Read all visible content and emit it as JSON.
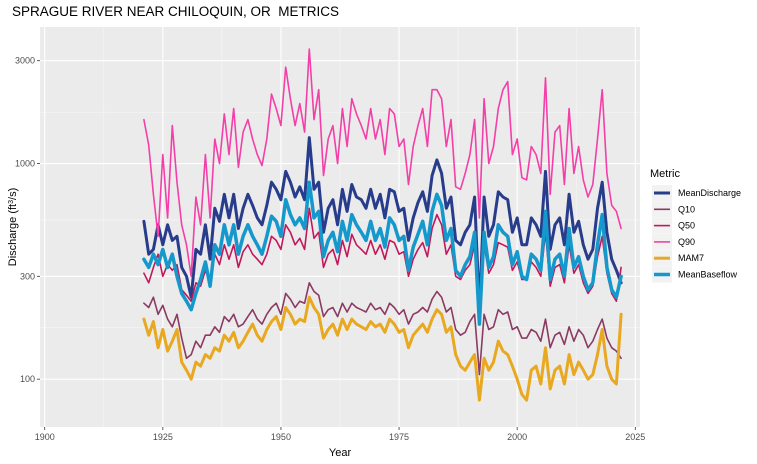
{
  "chart_data": {
    "type": "line",
    "title": "SPRAGUE RIVER NEAR CHILOQUIN, OR  METRICS",
    "xlabel": "Year",
    "ylabel": "Discharge (ft3/s)",
    "ylabel_parts": {
      "prefix": "Discharge (ft",
      "superscript": "3",
      "suffix": "/s)"
    },
    "y_scale": "log",
    "xlim": [
      1899,
      2026
    ],
    "ylim": [
      60,
      4300
    ],
    "x_ticks": [
      1900,
      1925,
      1950,
      1975,
      2000,
      2025
    ],
    "x_tick_labels": [
      "1900",
      "1925",
      "1950",
      "1975",
      "2000",
      "2025"
    ],
    "y_ticks": [
      100,
      300,
      1000,
      3000
    ],
    "y_tick_labels": [
      "100",
      "300",
      "1000",
      "3000"
    ],
    "grid": true,
    "legend_title": "Metric",
    "legend_position": "right",
    "x": [
      1921,
      1922,
      1923,
      1924,
      1925,
      1926,
      1927,
      1928,
      1929,
      1930,
      1931,
      1932,
      1933,
      1934,
      1935,
      1936,
      1937,
      1938,
      1939,
      1940,
      1941,
      1942,
      1943,
      1944,
      1945,
      1946,
      1947,
      1948,
      1949,
      1950,
      1951,
      1952,
      1953,
      1954,
      1955,
      1956,
      1957,
      1958,
      1959,
      1960,
      1961,
      1962,
      1963,
      1964,
      1965,
      1966,
      1967,
      1968,
      1969,
      1970,
      1971,
      1972,
      1973,
      1974,
      1975,
      1976,
      1977,
      1978,
      1979,
      1980,
      1981,
      1982,
      1983,
      1984,
      1985,
      1986,
      1987,
      1988,
      1989,
      1990,
      1991,
      1992,
      1993,
      1994,
      1995,
      1996,
      1997,
      1998,
      1999,
      2000,
      2001,
      2002,
      2003,
      2004,
      2005,
      2006,
      2007,
      2008,
      2009,
      2010,
      2011,
      2012,
      2013,
      2014,
      2015,
      2016,
      2017,
      2018,
      2019,
      2020,
      2021,
      2022
    ],
    "series": [
      {
        "name": "MeanDischarge",
        "color": "#283c8c",
        "width": 3,
        "values": [
          540,
          380,
          400,
          520,
          420,
          520,
          440,
          460,
          330,
          300,
          240,
          400,
          380,
          520,
          360,
          620,
          540,
          720,
          560,
          720,
          500,
          620,
          720,
          640,
          560,
          520,
          640,
          820,
          760,
          680,
          920,
          820,
          700,
          780,
          680,
          1320,
          760,
          820,
          480,
          620,
          680,
          520,
          760,
          600,
          800,
          700,
          680,
          620,
          760,
          620,
          720,
          560,
          760,
          740,
          600,
          620,
          440,
          560,
          660,
          740,
          600,
          880,
          1040,
          900,
          620,
          700,
          440,
          420,
          480,
          520,
          700,
          210,
          700,
          460,
          520,
          740,
          700,
          680,
          480,
          560,
          420,
          420,
          560,
          520,
          460,
          920,
          400,
          520,
          560,
          420,
          720,
          480,
          540,
          420,
          360,
          400,
          620,
          820,
          480,
          360,
          320,
          280
        ]
      },
      {
        "name": "Q10",
        "color": "#8b3a62",
        "width": 1.6,
        "values": [
          225,
          215,
          240,
          200,
          220,
          190,
          175,
          200,
          155,
          125,
          130,
          150,
          140,
          160,
          160,
          175,
          165,
          195,
          185,
          200,
          175,
          180,
          195,
          210,
          190,
          180,
          200,
          215,
          225,
          200,
          250,
          235,
          215,
          230,
          225,
          280,
          255,
          245,
          195,
          210,
          215,
          195,
          225,
          205,
          225,
          215,
          210,
          205,
          225,
          210,
          215,
          200,
          225,
          215,
          200,
          210,
          180,
          200,
          205,
          215,
          205,
          235,
          255,
          240,
          205,
          215,
          170,
          160,
          165,
          185,
          200,
          105,
          200,
          170,
          175,
          210,
          200,
          205,
          170,
          175,
          155,
          155,
          170,
          165,
          150,
          190,
          140,
          160,
          165,
          145,
          175,
          150,
          170,
          160,
          140,
          150,
          170,
          190,
          155,
          140,
          135,
          125
        ]
      },
      {
        "name": "Q50",
        "color": "#c2185b",
        "width": 1.6,
        "values": [
          310,
          280,
          330,
          380,
          300,
          340,
          320,
          340,
          260,
          245,
          230,
          280,
          270,
          320,
          280,
          380,
          340,
          420,
          360,
          420,
          330,
          390,
          420,
          380,
          360,
          340,
          380,
          460,
          440,
          400,
          520,
          480,
          420,
          450,
          400,
          620,
          450,
          480,
          330,
          380,
          400,
          340,
          440,
          370,
          470,
          420,
          400,
          380,
          440,
          380,
          420,
          360,
          440,
          430,
          380,
          390,
          300,
          360,
          400,
          430,
          370,
          500,
          580,
          520,
          380,
          420,
          300,
          290,
          320,
          340,
          420,
          180,
          420,
          310,
          340,
          430,
          420,
          410,
          320,
          350,
          290,
          290,
          350,
          330,
          300,
          480,
          270,
          330,
          340,
          280,
          420,
          310,
          340,
          280,
          250,
          270,
          370,
          460,
          310,
          250,
          230,
          330
        ]
      },
      {
        "name": "Q90",
        "color": "#f43fa8",
        "width": 1.6,
        "values": [
          1600,
          1220,
          720,
          460,
          1100,
          560,
          1500,
          820,
          520,
          420,
          300,
          700,
          520,
          1100,
          560,
          1300,
          1000,
          1700,
          1100,
          1800,
          960,
          1400,
          1600,
          1300,
          1100,
          980,
          1300,
          2100,
          1800,
          1500,
          2800,
          2000,
          1500,
          1900,
          1400,
          3400,
          1600,
          2200,
          880,
          1300,
          1500,
          1000,
          1800,
          1200,
          2000,
          1700,
          1500,
          1300,
          1800,
          1300,
          1600,
          1100,
          1800,
          1700,
          1200,
          1300,
          800,
          1200,
          1500,
          1800,
          1200,
          2200,
          2200,
          2000,
          1200,
          1600,
          780,
          760,
          900,
          1100,
          1600,
          560,
          2000,
          1000,
          1200,
          1800,
          2200,
          2400,
          1100,
          1300,
          860,
          840,
          1200,
          1100,
          900,
          2500,
          720,
          1400,
          1500,
          800,
          1800,
          900,
          1200,
          840,
          700,
          800,
          1300,
          2200,
          900,
          640,
          600,
          500
        ]
      },
      {
        "name": "MAM7",
        "color": "#e8a820",
        "width": 3,
        "values": [
          190,
          160,
          185,
          140,
          170,
          135,
          150,
          170,
          120,
          110,
          100,
          120,
          115,
          130,
          125,
          140,
          135,
          160,
          150,
          165,
          140,
          150,
          165,
          180,
          160,
          150,
          170,
          185,
          195,
          170,
          215,
          200,
          180,
          190,
          185,
          240,
          215,
          200,
          155,
          170,
          180,
          160,
          190,
          170,
          190,
          180,
          175,
          170,
          185,
          175,
          180,
          165,
          190,
          180,
          165,
          170,
          140,
          160,
          170,
          180,
          165,
          190,
          210,
          200,
          165,
          175,
          130,
          115,
          110,
          120,
          130,
          80,
          125,
          110,
          120,
          150,
          135,
          130,
          115,
          100,
          85,
          80,
          110,
          115,
          95,
          140,
          90,
          110,
          115,
          95,
          130,
          105,
          120,
          110,
          100,
          105,
          130,
          170,
          115,
          100,
          95,
          200
        ]
      },
      {
        "name": "MeanBaseflow",
        "color": "#1599cc",
        "width": 3.5,
        "values": [
          360,
          330,
          380,
          340,
          400,
          330,
          380,
          300,
          250,
          230,
          210,
          250,
          290,
          350,
          270,
          420,
          380,
          520,
          420,
          520,
          380,
          460,
          520,
          460,
          420,
          380,
          460,
          570,
          540,
          460,
          680,
          580,
          520,
          560,
          500,
          820,
          560,
          600,
          370,
          440,
          480,
          390,
          540,
          440,
          580,
          520,
          480,
          440,
          540,
          440,
          500,
          410,
          560,
          520,
          440,
          460,
          320,
          410,
          470,
          540,
          420,
          600,
          720,
          640,
          440,
          500,
          320,
          300,
          340,
          370,
          480,
          180,
          480,
          330,
          370,
          520,
          480,
          460,
          340,
          390,
          300,
          290,
          380,
          360,
          320,
          600,
          290,
          360,
          380,
          300,
          500,
          330,
          370,
          300,
          260,
          280,
          420,
          580,
          330,
          260,
          240,
          300
        ]
      }
    ]
  }
}
